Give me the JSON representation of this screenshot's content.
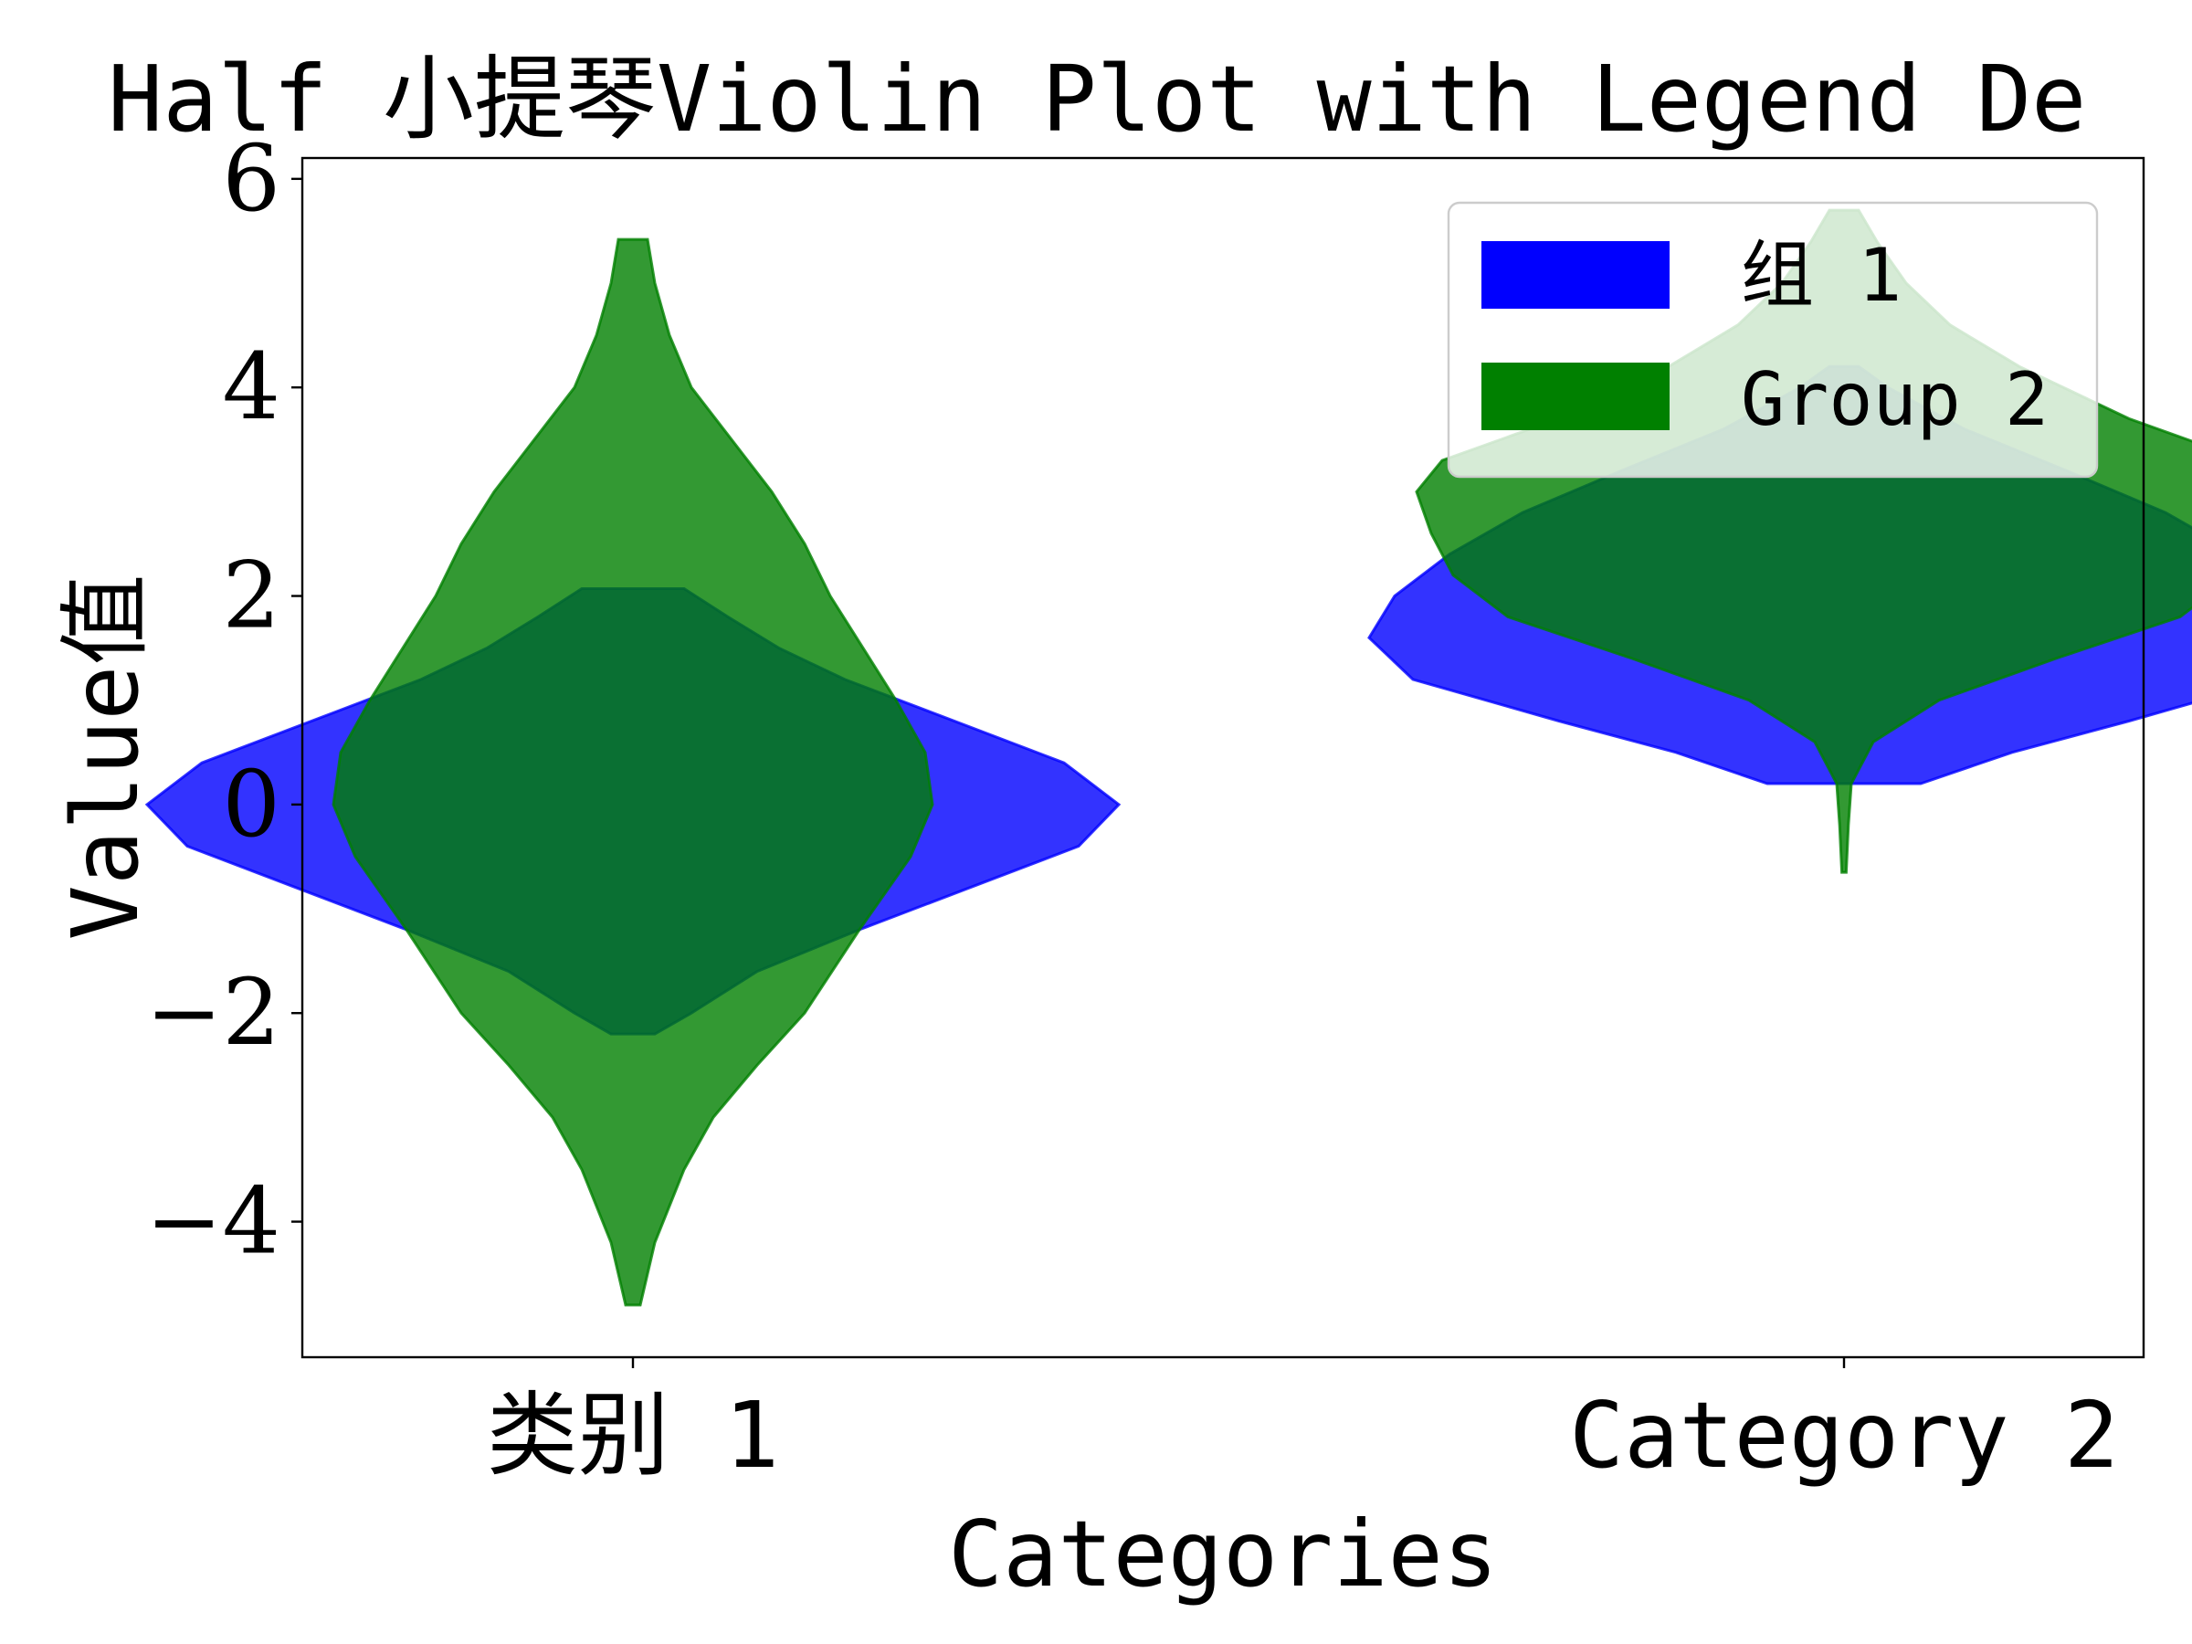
{
  "chart_data": {
    "type": "violin",
    "title": "Half 小提琴Violin Plot with Legend De",
    "xlabel": "Categories",
    "ylabel": "Value值",
    "categories": [
      "类别 1",
      "Category 2"
    ],
    "ylim": [
      -5.3,
      6.2
    ],
    "yticks": [
      -4,
      -2,
      0,
      2,
      4,
      6
    ],
    "ytick_labels": [
      "−4",
      "−2",
      "0",
      "2",
      "4",
      "6"
    ],
    "grid": false,
    "legend_position": "upper right",
    "series": [
      {
        "name": "组 1",
        "color": "#0000ff",
        "violins": [
          {
            "category": "类别 1",
            "density": [
              [
                -2.2,
                0.06
              ],
              [
                -2.0,
                0.16
              ],
              [
                -1.6,
                0.34
              ],
              [
                -1.2,
                0.62
              ],
              [
                -0.8,
                0.92
              ],
              [
                -0.4,
                1.22
              ],
              [
                0.0,
                1.33
              ],
              [
                0.4,
                1.18
              ],
              [
                0.8,
                0.88
              ],
              [
                1.2,
                0.58
              ],
              [
                1.5,
                0.4
              ],
              [
                1.8,
                0.26
              ],
              [
                2.07,
                0.14
              ]
            ]
          },
          {
            "category": "Category 2",
            "density": [
              [
                0.2,
                0.21
              ],
              [
                0.5,
                0.46
              ],
              [
                0.8,
                0.78
              ],
              [
                1.2,
                1.18
              ],
              [
                1.6,
                1.3
              ],
              [
                2.0,
                1.23
              ],
              [
                2.4,
                1.08
              ],
              [
                2.8,
                0.88
              ],
              [
                3.2,
                0.61
              ],
              [
                3.6,
                0.33
              ],
              [
                4.0,
                0.12
              ],
              [
                4.2,
                0.04
              ]
            ]
          }
        ]
      },
      {
        "name": "Group 2",
        "color": "#008000",
        "violins": [
          {
            "category": "类别 1",
            "density": [
              [
                -4.8,
                0.02
              ],
              [
                -4.2,
                0.06
              ],
              [
                -3.5,
                0.14
              ],
              [
                -3.0,
                0.22
              ],
              [
                -2.5,
                0.34
              ],
              [
                -2.0,
                0.47
              ],
              [
                -1.2,
                0.62
              ],
              [
                -0.5,
                0.76
              ],
              [
                0.0,
                0.82
              ],
              [
                0.5,
                0.8
              ],
              [
                1.0,
                0.72
              ],
              [
                1.5,
                0.63
              ],
              [
                2.0,
                0.54
              ],
              [
                2.5,
                0.47
              ],
              [
                3.0,
                0.38
              ],
              [
                3.5,
                0.27
              ],
              [
                4.0,
                0.16
              ],
              [
                4.5,
                0.1
              ],
              [
                5.0,
                0.06
              ],
              [
                5.42,
                0.04
              ]
            ]
          },
          {
            "category": "Category 2",
            "density": [
              [
                -0.65,
                0.006
              ],
              [
                -0.2,
                0.012
              ],
              [
                0.2,
                0.02
              ],
              [
                0.6,
                0.08
              ],
              [
                1.0,
                0.26
              ],
              [
                1.4,
                0.58
              ],
              [
                1.8,
                0.92
              ],
              [
                2.2,
                1.07
              ],
              [
                2.6,
                1.13
              ],
              [
                3.0,
                1.17
              ],
              [
                3.3,
                1.1
              ],
              [
                3.7,
                0.78
              ],
              [
                4.2,
                0.48
              ],
              [
                4.6,
                0.29
              ],
              [
                5.0,
                0.17
              ],
              [
                5.4,
                0.09
              ],
              [
                5.7,
                0.04
              ]
            ]
          }
        ]
      }
    ]
  }
}
